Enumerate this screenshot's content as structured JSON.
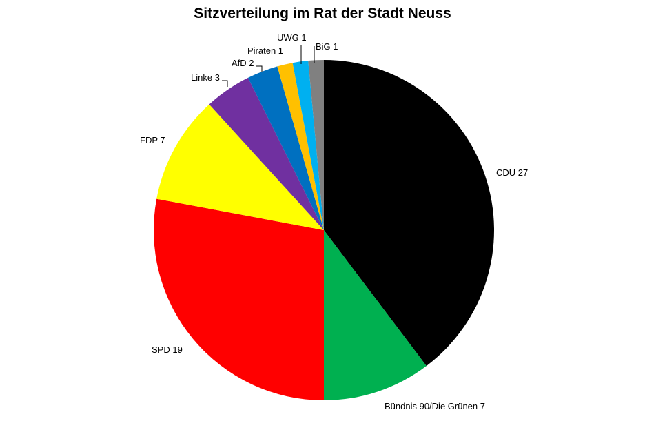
{
  "chart_data": {
    "type": "pie",
    "title": "Sitzverteilung im Rat der Stadt Neuss",
    "slices": [
      {
        "name": "CDU",
        "label": "CDU 27",
        "value": 27,
        "color": "#000000"
      },
      {
        "name": "Bündnis 90/Die Grünen",
        "label": "Bündnis 90/Die Grünen  7",
        "value": 7,
        "color": "#00b050"
      },
      {
        "name": "SPD",
        "label": "SPD 19",
        "value": 19,
        "color": "#ff0000"
      },
      {
        "name": "FDP",
        "label": "FDP 7",
        "value": 7,
        "color": "#ffff00"
      },
      {
        "name": "Linke",
        "label": "Linke 3",
        "value": 3,
        "color": "#7030a0"
      },
      {
        "name": "AfD",
        "label": "AfD 2",
        "value": 2,
        "color": "#0070c0"
      },
      {
        "name": "Piraten",
        "label": "Piraten 1",
        "value": 1,
        "color": "#ffc000"
      },
      {
        "name": "UWG",
        "label": "UWG 1",
        "value": 1,
        "color": "#00b0f0"
      },
      {
        "name": "BiG",
        "label": "BiG 1",
        "value": 1,
        "color": "#808080"
      }
    ],
    "start_angle": "12 o'clock",
    "direction": "clockwise",
    "legend": "none"
  }
}
